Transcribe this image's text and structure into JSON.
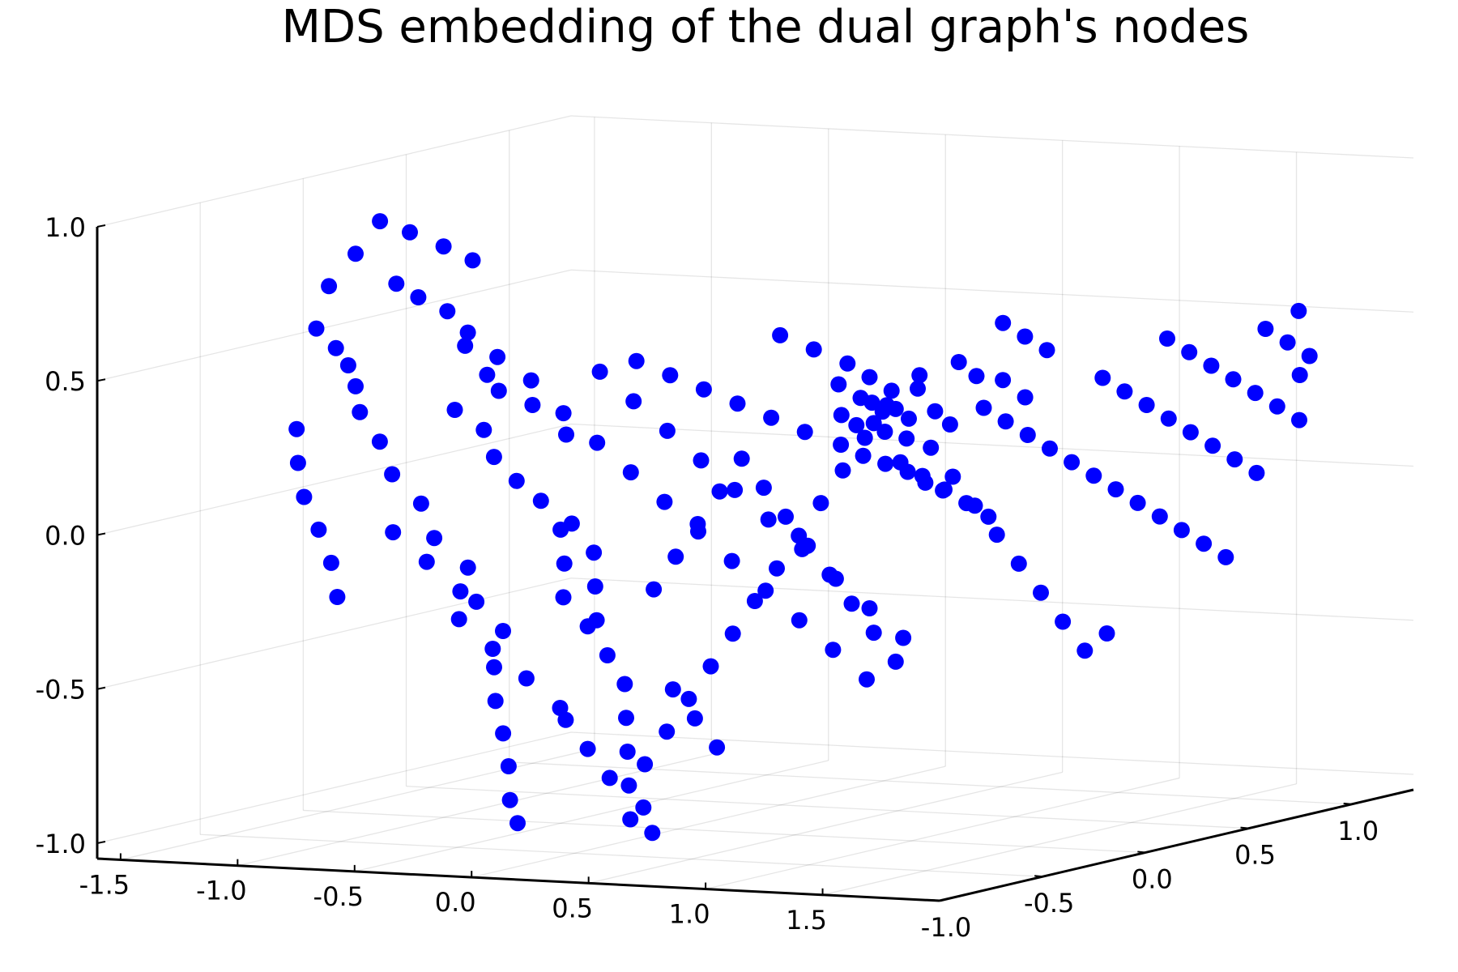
{
  "chart_data": {
    "type": "scatter",
    "projection": "3d",
    "title": "MDS embedding of the dual graph's nodes",
    "xlabel": "",
    "ylabel": "",
    "zlabel": "",
    "xlim": [
      -1.6,
      2.0
    ],
    "ylim": [
      -1.0,
      1.3
    ],
    "zlim": [
      -1.05,
      1.0
    ],
    "x_ticks": [
      "-1.5",
      "-1.0",
      "-0.5",
      "0.0",
      "0.5",
      "1.0",
      "1.5"
    ],
    "y_ticks": [
      "-1.0",
      "-0.5",
      "0.0",
      "0.5",
      "1.0"
    ],
    "z_ticks": [
      "-1.0",
      "-0.5",
      "0.0",
      "0.5",
      "1.0"
    ],
    "grid": true,
    "legend": "none",
    "marker_color": "#0000ff",
    "series": [
      {
        "points": [
          [
            -1.06,
            -0.55,
            0.62
          ],
          [
            -1.02,
            -0.5,
            0.55
          ],
          [
            -0.95,
            -0.52,
            0.5
          ],
          [
            -0.98,
            -0.45,
            0.42
          ],
          [
            -0.9,
            -0.52,
            0.35
          ],
          [
            -0.85,
            -0.48,
            0.25
          ],
          [
            -0.78,
            -0.5,
            0.15
          ],
          [
            -0.7,
            -0.45,
            0.05
          ],
          [
            -0.6,
            -0.5,
            -0.05
          ],
          [
            -0.5,
            -0.45,
            -0.15
          ],
          [
            -0.42,
            -0.5,
            -0.25
          ],
          [
            -0.35,
            -0.45,
            -0.35
          ],
          [
            -1.1,
            -0.6,
            0.3
          ],
          [
            -1.05,
            -0.65,
            0.2
          ],
          [
            -0.98,
            -0.7,
            0.1
          ],
          [
            -0.9,
            -0.72,
            0.0
          ],
          [
            -0.82,
            -0.75,
            -0.1
          ],
          [
            -0.75,
            -0.8,
            -0.2
          ],
          [
            -0.85,
            -0.4,
            0.75
          ],
          [
            -0.8,
            -0.35,
            0.7
          ],
          [
            -0.72,
            -0.3,
            0.65
          ],
          [
            -0.65,
            -0.28,
            0.58
          ],
          [
            -0.55,
            -0.25,
            0.5
          ],
          [
            -0.45,
            -0.2,
            0.42
          ],
          [
            -0.7,
            -0.2,
            0.8
          ],
          [
            -0.78,
            -0.25,
            0.85
          ],
          [
            -0.88,
            -0.3,
            0.9
          ],
          [
            -0.92,
            -0.4,
            0.95
          ],
          [
            -0.98,
            -0.45,
            0.85
          ],
          [
            -1.05,
            -0.5,
            0.75
          ],
          [
            -0.6,
            -0.4,
            0.35
          ],
          [
            -0.52,
            -0.35,
            0.28
          ],
          [
            -0.45,
            -0.38,
            0.2
          ],
          [
            -0.38,
            -0.35,
            0.12
          ],
          [
            -0.32,
            -0.3,
            0.05
          ],
          [
            -0.28,
            -0.25,
            -0.05
          ],
          [
            -0.22,
            -0.3,
            -0.15
          ],
          [
            -0.18,
            -0.35,
            -0.25
          ],
          [
            -0.12,
            -0.3,
            -0.35
          ],
          [
            -0.08,
            -0.25,
            -0.45
          ],
          [
            -0.05,
            -0.2,
            -0.55
          ],
          [
            0.0,
            -0.25,
            -0.65
          ],
          [
            0.05,
            -0.3,
            -0.75
          ],
          [
            0.1,
            -0.35,
            -0.85
          ],
          [
            0.15,
            -0.4,
            -0.95
          ],
          [
            0.2,
            -0.35,
            -1.0
          ],
          [
            -0.3,
            -0.55,
            -0.45
          ],
          [
            -0.25,
            -0.6,
            -0.55
          ],
          [
            -0.2,
            -0.62,
            -0.65
          ],
          [
            -0.15,
            -0.65,
            -0.75
          ],
          [
            -0.1,
            -0.7,
            -0.85
          ],
          [
            -0.05,
            -0.72,
            -0.92
          ],
          [
            0.05,
            -0.6,
            -0.6
          ],
          [
            0.1,
            -0.55,
            -0.7
          ],
          [
            0.15,
            -0.5,
            -0.8
          ],
          [
            0.25,
            -0.45,
            -0.9
          ],
          [
            0.3,
            -0.5,
            -0.75
          ],
          [
            0.35,
            -0.45,
            -0.65
          ],
          [
            0.4,
            -0.4,
            -0.55
          ],
          [
            0.45,
            -0.35,
            -0.45
          ],
          [
            0.5,
            -0.3,
            -0.35
          ],
          [
            0.55,
            -0.25,
            -0.25
          ],
          [
            0.6,
            -0.2,
            -0.15
          ],
          [
            0.65,
            -0.15,
            -0.05
          ],
          [
            0.7,
            -0.1,
            0.05
          ],
          [
            0.75,
            -0.05,
            0.15
          ],
          [
            0.8,
            0.0,
            0.25
          ],
          [
            0.85,
            0.05,
            0.35
          ],
          [
            0.9,
            0.1,
            0.3
          ],
          [
            0.95,
            0.15,
            0.2
          ],
          [
            1.0,
            0.2,
            0.1
          ],
          [
            1.05,
            0.25,
            0.0
          ],
          [
            1.1,
            0.3,
            -0.1
          ],
          [
            1.15,
            0.35,
            -0.2
          ],
          [
            1.2,
            0.4,
            -0.3
          ],
          [
            1.25,
            0.45,
            -0.4
          ],
          [
            1.3,
            0.5,
            -0.5
          ],
          [
            1.35,
            0.55,
            -0.45
          ],
          [
            0.6,
            0.1,
            0.4
          ],
          [
            0.65,
            0.15,
            0.35
          ],
          [
            0.7,
            0.2,
            0.3
          ],
          [
            0.75,
            0.1,
            0.28
          ],
          [
            0.8,
            0.15,
            0.32
          ],
          [
            0.85,
            0.2,
            0.38
          ],
          [
            0.88,
            0.25,
            0.3
          ],
          [
            0.9,
            0.3,
            0.25
          ],
          [
            0.7,
            0.0,
            0.32
          ],
          [
            0.72,
            0.05,
            0.28
          ],
          [
            0.76,
            0.08,
            0.35
          ],
          [
            0.78,
            0.12,
            0.25
          ],
          [
            0.82,
            0.18,
            0.22
          ],
          [
            0.84,
            0.22,
            0.42
          ],
          [
            0.68,
            0.02,
            0.22
          ],
          [
            0.74,
            0.06,
            0.18
          ],
          [
            0.8,
            0.1,
            0.15
          ],
          [
            0.86,
            0.14,
            0.12
          ],
          [
            0.9,
            0.18,
            0.08
          ],
          [
            0.94,
            0.22,
            0.05
          ],
          [
            1.0,
            0.35,
            0.3
          ],
          [
            1.05,
            0.4,
            0.25
          ],
          [
            1.1,
            0.45,
            0.2
          ],
          [
            1.15,
            0.5,
            0.15
          ],
          [
            1.2,
            0.55,
            0.1
          ],
          [
            1.25,
            0.6,
            0.05
          ],
          [
            1.3,
            0.65,
            0.0
          ],
          [
            1.35,
            0.7,
            -0.05
          ],
          [
            1.4,
            0.75,
            -0.1
          ],
          [
            1.45,
            0.8,
            -0.15
          ],
          [
            1.5,
            0.85,
            -0.2
          ],
          [
            1.55,
            0.9,
            -0.25
          ],
          [
            1.2,
            0.7,
            0.35
          ],
          [
            1.25,
            0.75,
            0.3
          ],
          [
            1.3,
            0.8,
            0.25
          ],
          [
            1.35,
            0.85,
            0.2
          ],
          [
            1.4,
            0.9,
            0.15
          ],
          [
            1.45,
            0.95,
            0.1
          ],
          [
            1.5,
            1.0,
            0.05
          ],
          [
            1.55,
            1.05,
            0.0
          ],
          [
            1.3,
            0.9,
            0.45
          ],
          [
            1.35,
            0.95,
            0.4
          ],
          [
            1.4,
            1.0,
            0.35
          ],
          [
            1.45,
            1.05,
            0.3
          ],
          [
            1.5,
            1.1,
            0.25
          ],
          [
            1.55,
            1.15,
            0.2
          ],
          [
            1.6,
            1.2,
            0.15
          ],
          [
            1.5,
            1.15,
            0.45
          ],
          [
            1.55,
            1.2,
            0.4
          ],
          [
            1.6,
            1.25,
            0.35
          ],
          [
            1.58,
            1.22,
            0.5
          ],
          [
            1.62,
            1.18,
            0.3
          ],
          [
            -0.4,
            -0.1,
            0.3
          ],
          [
            -0.3,
            -0.05,
            0.2
          ],
          [
            -0.2,
            0.0,
            0.1
          ],
          [
            -0.1,
            0.05,
            0.0
          ],
          [
            0.0,
            0.1,
            -0.1
          ],
          [
            0.1,
            0.15,
            -0.2
          ],
          [
            0.2,
            0.2,
            -0.3
          ],
          [
            0.3,
            0.25,
            -0.4
          ],
          [
            0.4,
            0.3,
            -0.5
          ],
          [
            0.5,
            0.35,
            -0.6
          ],
          [
            -0.2,
            -0.15,
            0.45
          ],
          [
            -0.1,
            -0.1,
            0.35
          ],
          [
            0.0,
            -0.05,
            0.25
          ],
          [
            0.1,
            0.0,
            0.15
          ],
          [
            0.2,
            0.05,
            0.05
          ],
          [
            0.3,
            0.1,
            -0.05
          ],
          [
            0.4,
            0.15,
            -0.15
          ],
          [
            0.5,
            0.2,
            -0.25
          ],
          [
            0.6,
            0.25,
            -0.35
          ],
          [
            0.7,
            0.3,
            -0.45
          ],
          [
            0.0,
            -0.2,
            0.5
          ],
          [
            0.1,
            -0.15,
            0.45
          ],
          [
            0.2,
            -0.1,
            0.4
          ],
          [
            0.3,
            -0.05,
            0.35
          ],
          [
            0.4,
            0.0,
            0.3
          ],
          [
            0.5,
            0.05,
            0.25
          ],
          [
            0.25,
            -0.4,
            -0.2
          ],
          [
            0.3,
            -0.35,
            -0.1
          ],
          [
            0.35,
            -0.3,
            0.0
          ],
          [
            0.4,
            -0.25,
            0.1
          ],
          [
            0.45,
            -0.2,
            0.2
          ],
          [
            0.5,
            -0.15,
            0.1
          ],
          [
            0.55,
            -0.1,
            0.0
          ],
          [
            0.6,
            -0.05,
            -0.1
          ],
          [
            0.65,
            0.0,
            -0.2
          ],
          [
            0.7,
            0.05,
            -0.3
          ],
          [
            0.75,
            0.1,
            -0.4
          ],
          [
            0.8,
            0.15,
            -0.5
          ],
          [
            -0.6,
            -0.7,
            0.0
          ],
          [
            -0.5,
            -0.65,
            -0.1
          ],
          [
            -0.4,
            -0.6,
            -0.2
          ],
          [
            -0.45,
            -0.55,
            -0.3
          ],
          [
            -0.35,
            -0.5,
            -0.4
          ],
          [
            -0.25,
            -0.45,
            -0.5
          ],
          [
            -0.15,
            -0.4,
            -0.6
          ],
          [
            -0.5,
            -0.3,
            0.4
          ],
          [
            -0.4,
            -0.25,
            0.35
          ],
          [
            -0.3,
            -0.2,
            0.25
          ],
          [
            -0.6,
            -0.35,
            0.55
          ],
          [
            -0.55,
            -0.3,
            0.45
          ],
          [
            0.55,
            0.2,
            0.45
          ],
          [
            0.6,
            0.25,
            0.4
          ],
          [
            0.65,
            0.3,
            0.35
          ],
          [
            0.45,
            0.15,
            0.5
          ],
          [
            0.35,
            0.1,
            0.55
          ],
          [
            0.92,
            0.32,
            0.45
          ],
          [
            0.96,
            0.36,
            0.4
          ],
          [
            1.02,
            0.42,
            0.38
          ],
          [
            1.08,
            0.46,
            0.32
          ],
          [
            0.95,
            0.5,
            0.55
          ],
          [
            1.0,
            0.55,
            0.5
          ],
          [
            1.05,
            0.6,
            0.45
          ],
          [
            0.2,
            -0.25,
            -0.55
          ],
          [
            0.25,
            -0.2,
            -0.65
          ],
          [
            0.3,
            -0.15,
            -0.75
          ],
          [
            0.05,
            -0.45,
            -0.3
          ],
          [
            0.0,
            -0.4,
            -0.2
          ],
          [
            -0.05,
            -0.35,
            -0.1
          ],
          [
            -0.1,
            -0.4,
            0.0
          ],
          [
            0.6,
            0.4,
            0.1
          ],
          [
            0.65,
            0.45,
            0.05
          ],
          [
            0.7,
            0.5,
            0.0
          ],
          [
            0.75,
            0.55,
            -0.05
          ],
          [
            0.8,
            0.6,
            -0.1
          ]
        ]
      }
    ]
  }
}
